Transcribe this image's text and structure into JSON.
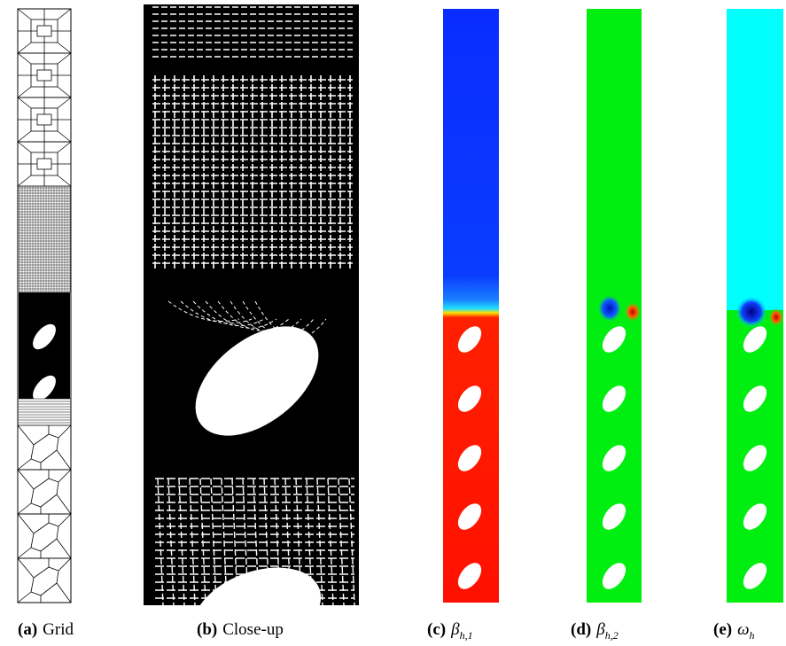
{
  "panels": [
    {
      "label": "(a)",
      "caption": "Grid"
    },
    {
      "label": "(b)",
      "caption": "Close-up"
    },
    {
      "label": "(c)",
      "symbol": "β",
      "subscript": "h,1"
    },
    {
      "label": "(d)",
      "symbol": "β",
      "subscript": "h,2"
    },
    {
      "label": "(e)",
      "symbol": "ω",
      "subscript": "h"
    }
  ]
}
